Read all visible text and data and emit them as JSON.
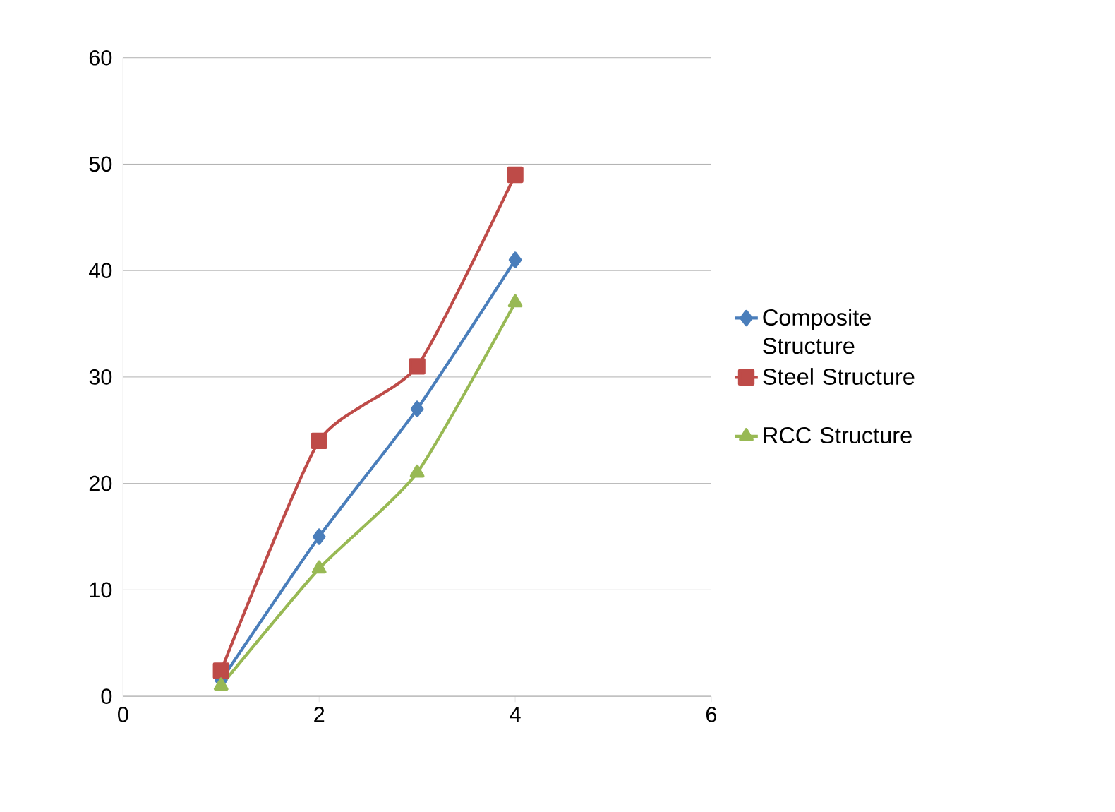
{
  "chart_data": {
    "type": "line",
    "x": [
      1,
      2,
      3,
      4
    ],
    "series": [
      {
        "name": "Composite Structure",
        "color": "#4a7ebb",
        "marker": "diamond",
        "values": [
          1.5,
          15,
          27,
          41
        ]
      },
      {
        "name": "Steel Structure",
        "color": "#be4b48",
        "marker": "square",
        "values": [
          2.4,
          24,
          31,
          49
        ]
      },
      {
        "name": "RCC Structure",
        "color": "#98b954",
        "marker": "triangle",
        "values": [
          1,
          12,
          21,
          37
        ]
      }
    ],
    "xlim": [
      0,
      6
    ],
    "xticks": [
      0,
      2,
      4,
      6
    ],
    "ylim": [
      0,
      60
    ],
    "yticks": [
      0,
      10,
      20,
      30,
      40,
      50,
      60
    ],
    "grid": "y",
    "legend": "right"
  }
}
